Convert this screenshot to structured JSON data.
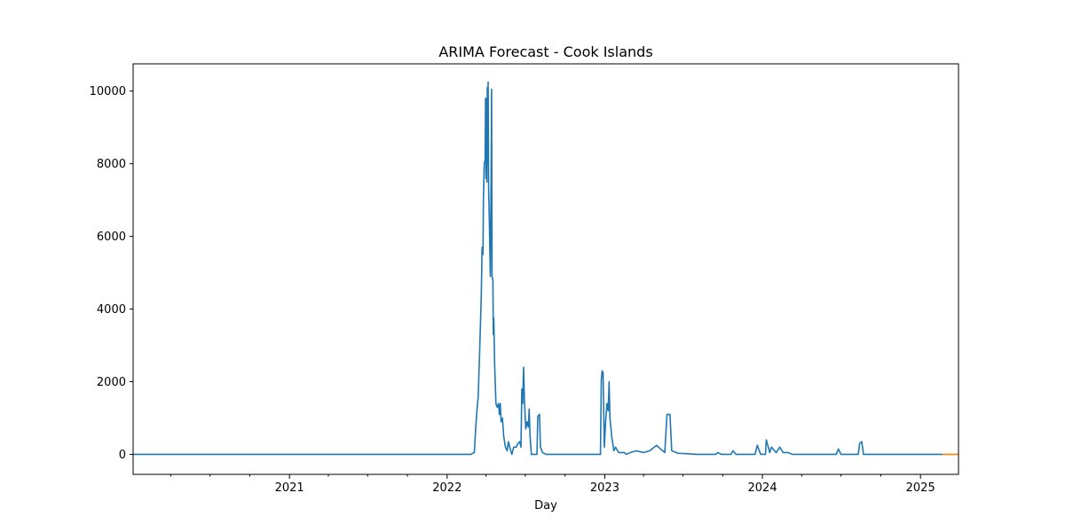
{
  "chart_data": {
    "type": "line",
    "title": "ARIMA Forecast - Cook Islands",
    "xlabel": "Day",
    "ylabel": "",
    "xlim": [
      "2020-01-05",
      "2025-03-30"
    ],
    "ylim": [
      -550,
      10750
    ],
    "x_ticks": [
      "2021",
      "2022",
      "2023",
      "2024",
      "2025"
    ],
    "y_ticks": [
      0,
      2000,
      4000,
      6000,
      8000,
      10000
    ],
    "grid": false,
    "colors": {
      "history": "#1f77b4",
      "forecast": "#ff7f0e"
    },
    "series": [
      {
        "role": "history",
        "color": "#1f77b4",
        "points": [
          [
            "2020-01-05",
            0
          ],
          [
            "2022-02-25",
            0
          ],
          [
            "2022-03-01",
            30
          ],
          [
            "2022-03-05",
            50
          ],
          [
            "2022-03-08",
            700
          ],
          [
            "2022-03-11",
            1200
          ],
          [
            "2022-03-14",
            1600
          ],
          [
            "2022-03-17",
            2700
          ],
          [
            "2022-03-19",
            3500
          ],
          [
            "2022-03-21",
            4300
          ],
          [
            "2022-03-23",
            5700
          ],
          [
            "2022-03-25",
            5500
          ],
          [
            "2022-03-26",
            7000
          ],
          [
            "2022-03-28",
            8000
          ],
          [
            "2022-03-30",
            8100
          ],
          [
            "2022-03-31",
            9800
          ],
          [
            "2022-04-01",
            7600
          ],
          [
            "2022-04-02",
            9800
          ],
          [
            "2022-04-03",
            7500
          ],
          [
            "2022-04-04",
            10100
          ],
          [
            "2022-04-05",
            8000
          ],
          [
            "2022-04-06",
            10250
          ],
          [
            "2022-04-07",
            7400
          ],
          [
            "2022-04-09",
            6300
          ],
          [
            "2022-04-11",
            4900
          ],
          [
            "2022-04-13",
            7800
          ],
          [
            "2022-04-14",
            10050
          ],
          [
            "2022-04-15",
            4900
          ],
          [
            "2022-04-17",
            4800
          ],
          [
            "2022-04-18",
            3300
          ],
          [
            "2022-04-19",
            3750
          ],
          [
            "2022-04-21",
            2500
          ],
          [
            "2022-04-24",
            1400
          ],
          [
            "2022-04-27",
            1300
          ],
          [
            "2022-04-30",
            1400
          ],
          [
            "2022-05-02",
            1100
          ],
          [
            "2022-05-04",
            1400
          ],
          [
            "2022-05-06",
            900
          ],
          [
            "2022-05-09",
            1000
          ],
          [
            "2022-05-12",
            500
          ],
          [
            "2022-05-16",
            200
          ],
          [
            "2022-05-20",
            100
          ],
          [
            "2022-05-23",
            350
          ],
          [
            "2022-05-27",
            150
          ],
          [
            "2022-05-31",
            0
          ],
          [
            "2022-06-04",
            200
          ],
          [
            "2022-06-10",
            200
          ],
          [
            "2022-06-14",
            300
          ],
          [
            "2022-06-18",
            350
          ],
          [
            "2022-06-21",
            200
          ],
          [
            "2022-06-23",
            1800
          ],
          [
            "2022-06-25",
            1400
          ],
          [
            "2022-06-27",
            2400
          ],
          [
            "2022-06-29",
            1500
          ],
          [
            "2022-07-02",
            700
          ],
          [
            "2022-07-05",
            900
          ],
          [
            "2022-07-08",
            750
          ],
          [
            "2022-07-10",
            1250
          ],
          [
            "2022-07-12",
            500
          ],
          [
            "2022-07-15",
            0
          ],
          [
            "2022-07-28",
            0
          ],
          [
            "2022-07-30",
            1050
          ],
          [
            "2022-08-03",
            1100
          ],
          [
            "2022-08-05",
            200
          ],
          [
            "2022-08-10",
            50
          ],
          [
            "2022-08-18",
            0
          ],
          [
            "2022-12-22",
            0
          ],
          [
            "2022-12-24",
            2050
          ],
          [
            "2022-12-26",
            2300
          ],
          [
            "2022-12-28",
            2250
          ],
          [
            "2022-12-31",
            200
          ],
          [
            "2023-01-03",
            900
          ],
          [
            "2023-01-06",
            1400
          ],
          [
            "2023-01-09",
            1200
          ],
          [
            "2023-01-11",
            2000
          ],
          [
            "2023-01-13",
            1000
          ],
          [
            "2023-01-17",
            500
          ],
          [
            "2023-01-22",
            100
          ],
          [
            "2023-01-26",
            200
          ],
          [
            "2023-02-02",
            50
          ],
          [
            "2023-02-15",
            50
          ],
          [
            "2023-02-20",
            0
          ],
          [
            "2023-03-01",
            50
          ],
          [
            "2023-03-15",
            100
          ],
          [
            "2023-04-01",
            50
          ],
          [
            "2023-04-15",
            100
          ],
          [
            "2023-05-01",
            250
          ],
          [
            "2023-05-10",
            150
          ],
          [
            "2023-05-20",
            50
          ],
          [
            "2023-05-25",
            1100
          ],
          [
            "2023-06-01",
            1100
          ],
          [
            "2023-06-05",
            100
          ],
          [
            "2023-06-20",
            30
          ],
          [
            "2023-07-10",
            20
          ],
          [
            "2023-08-01",
            0
          ],
          [
            "2023-09-15",
            0
          ],
          [
            "2023-09-20",
            50
          ],
          [
            "2023-09-28",
            0
          ],
          [
            "2023-10-20",
            0
          ],
          [
            "2023-10-25",
            100
          ],
          [
            "2023-11-01",
            0
          ],
          [
            "2023-12-15",
            0
          ],
          [
            "2023-12-20",
            250
          ],
          [
            "2023-12-28",
            0
          ],
          [
            "2024-01-08",
            0
          ],
          [
            "2024-01-10",
            400
          ],
          [
            "2024-01-18",
            50
          ],
          [
            "2024-01-22",
            200
          ],
          [
            "2024-02-02",
            50
          ],
          [
            "2024-02-10",
            200
          ],
          [
            "2024-02-18",
            50
          ],
          [
            "2024-03-01",
            50
          ],
          [
            "2024-03-10",
            0
          ],
          [
            "2024-05-10",
            0
          ],
          [
            "2024-06-20",
            0
          ],
          [
            "2024-06-25",
            150
          ],
          [
            "2024-07-01",
            0
          ],
          [
            "2024-08-10",
            0
          ],
          [
            "2024-08-13",
            300
          ],
          [
            "2024-08-18",
            350
          ],
          [
            "2024-08-22",
            0
          ],
          [
            "2025-02-21",
            0
          ]
        ]
      },
      {
        "role": "forecast",
        "color": "#ff7f0e",
        "points": [
          [
            "2025-02-21",
            0
          ],
          [
            "2025-03-30",
            0
          ]
        ]
      }
    ]
  }
}
